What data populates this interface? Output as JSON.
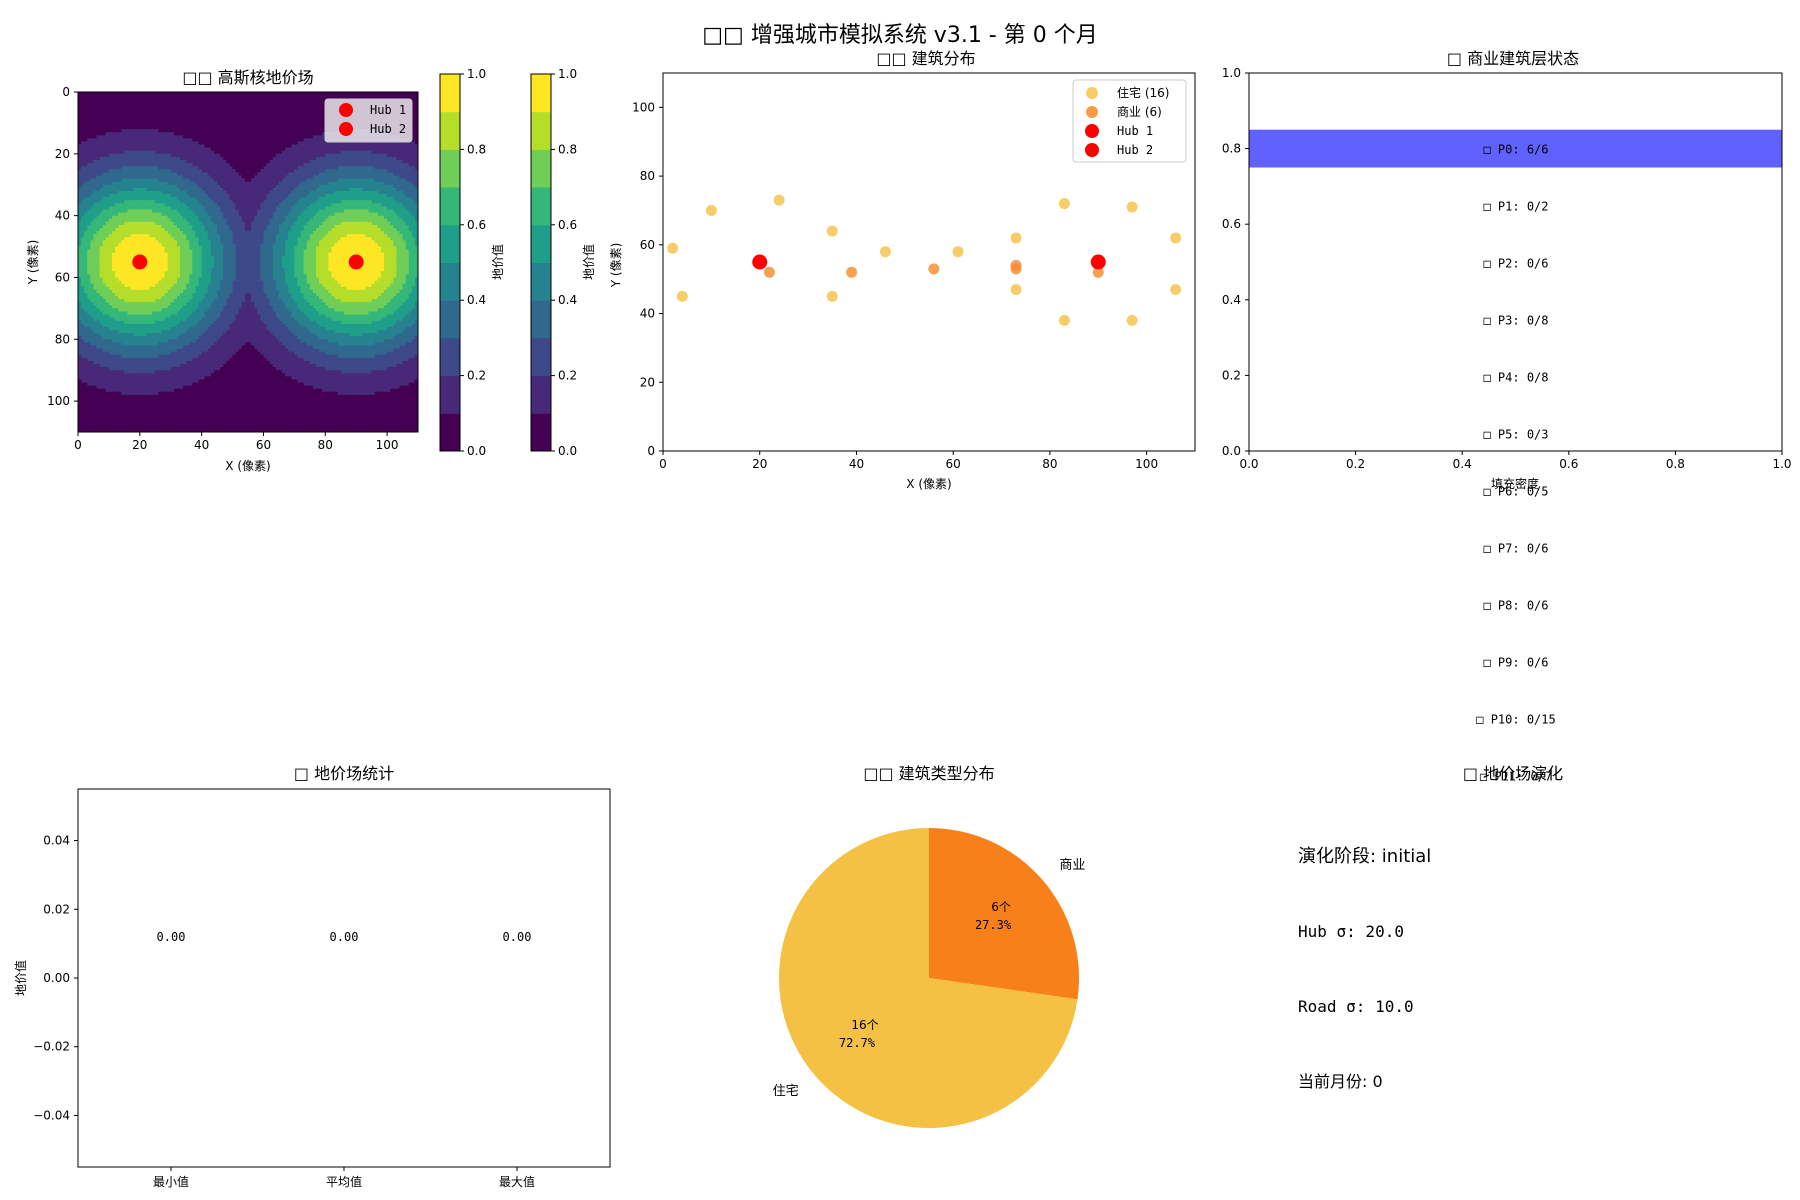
{
  "suptitle": "□□ 增强城市模拟系统 v3.1 - 第 0 个月",
  "colors": {
    "residential": "#f5c144",
    "commercial": "#f58a2a",
    "hub": "#ff0000",
    "bar_fill": "#5050ff",
    "pie_residential": "#f5c144",
    "pie_commercial": "#f8801a",
    "viridis": [
      "#440154",
      "#482878",
      "#3e4989",
      "#31688e",
      "#26828e",
      "#1f9e89",
      "#35b779",
      "#6ece58",
      "#b5de2b",
      "#fde725"
    ]
  },
  "chart_data": [
    {
      "id": "landprice-field",
      "type": "heatmap",
      "title": "□□ 高斯核地价场",
      "xlabel": "X (像素)",
      "ylabel": "Y (像素)",
      "xlim": [
        0,
        110
      ],
      "ylim": [
        110,
        0
      ],
      "xticks": [
        0,
        20,
        40,
        60,
        80,
        100
      ],
      "yticks": [
        0,
        20,
        40,
        60,
        80,
        100
      ],
      "hubs": [
        {
          "name": "Hub 1",
          "x": 20,
          "y": 55
        },
        {
          "name": "Hub 2",
          "x": 90,
          "y": 55
        }
      ],
      "legend": [
        "Hub 1",
        "Hub 2"
      ],
      "legend_position": "top-right",
      "sigma": 20,
      "colorbars": [
        {
          "label": "地价值",
          "ticks": [
            "0.0",
            "0.2",
            "0.4",
            "0.6",
            "0.8",
            "1.0"
          ]
        },
        {
          "label": "地价值",
          "ticks": [
            "0.0",
            "0.2",
            "0.4",
            "0.6",
            "0.8",
            "1.0"
          ]
        }
      ]
    },
    {
      "id": "building-distribution",
      "type": "scatter",
      "title": "□□ 建筑分布",
      "xlabel": "X (像素)",
      "ylabel": "Y (像素)",
      "xlim": [
        0,
        110
      ],
      "ylim": [
        0,
        110
      ],
      "xticks": [
        0,
        20,
        40,
        60,
        80,
        100
      ],
      "yticks": [
        0,
        20,
        40,
        60,
        80,
        100
      ],
      "legend_position": "top-right",
      "series": [
        {
          "name": "住宅 (16)",
          "color_key": "residential",
          "points": [
            [
              2,
              59
            ],
            [
              4,
              45
            ],
            [
              10,
              70
            ],
            [
              24,
              73
            ],
            [
              35,
              64
            ],
            [
              35,
              45
            ],
            [
              46,
              58
            ],
            [
              61,
              58
            ],
            [
              73,
              62
            ],
            [
              73,
              47
            ],
            [
              83,
              72
            ],
            [
              83,
              38
            ],
            [
              97,
              71
            ],
            [
              97,
              38
            ],
            [
              106,
              62
            ],
            [
              106,
              47
            ]
          ]
        },
        {
          "name": "商业 (6)",
          "color_key": "commercial",
          "points": [
            [
              22,
              52
            ],
            [
              39,
              52
            ],
            [
              56,
              53
            ],
            [
              73,
              54
            ],
            [
              73,
              53
            ],
            [
              90,
              52
            ]
          ]
        },
        {
          "name": "Hub 1",
          "color_key": "hub",
          "points": [
            [
              20,
              55
            ]
          ]
        },
        {
          "name": "Hub 2",
          "color_key": "hub",
          "points": [
            [
              90,
              55
            ]
          ]
        }
      ]
    },
    {
      "id": "commercial-layer-status",
      "type": "bar",
      "title": "□ 商业建筑层状态",
      "xlabel": "填充密度",
      "xlim": [
        0,
        1
      ],
      "ylim": [
        0,
        1
      ],
      "xticks": [
        "0.0",
        "0.2",
        "0.4",
        "0.6",
        "0.8",
        "1.0"
      ],
      "yticks": [
        "0.0",
        "0.2",
        "0.4",
        "0.6",
        "0.8",
        "1.0"
      ],
      "bar": {
        "fill_fraction": 1.0,
        "layer": "P0",
        "y_range": [
          0.75,
          0.85
        ]
      },
      "layers": [
        "□ P0: 6/6",
        "□ P1: 0/2",
        "□ P2: 0/6",
        "□ P3: 0/8",
        "□ P4: 0/8",
        "□ P5: 0/3",
        "□ P6: 0/5",
        "□ P7: 0/6",
        "□ P8: 0/6",
        "□ P9: 0/6",
        "□ P10: 0/15",
        "□ P11: 0/7"
      ]
    },
    {
      "id": "landprice-stats",
      "type": "bar",
      "title": "□ 地价场统计",
      "ylabel": "地价值",
      "categories": [
        "最小值",
        "平均值",
        "最大值"
      ],
      "values": [
        0,
        0,
        0
      ],
      "value_labels": [
        "0.00",
        "0.00",
        "0.00"
      ],
      "ylim": [
        -0.055,
        0.055
      ],
      "yticks": [
        "0.04",
        "0.02",
        "0.00",
        "−0.02",
        "−0.04"
      ]
    },
    {
      "id": "building-types",
      "type": "pie",
      "title": "□□ 建筑类型分布",
      "slices": [
        {
          "label": "商业",
          "value": 6,
          "count_label": "6个",
          "pct_label": "27.3%",
          "color_key": "pie_commercial"
        },
        {
          "label": "住宅",
          "value": 16,
          "count_label": "16个",
          "pct_label": "72.7%",
          "color_key": "pie_residential"
        }
      ]
    }
  ],
  "evolution": {
    "title": "□ 地价场演化",
    "lines": [
      "演化阶段: initial",
      "Hub σ: 20.0",
      "Road σ: 10.0",
      "当前月份: 0"
    ]
  }
}
